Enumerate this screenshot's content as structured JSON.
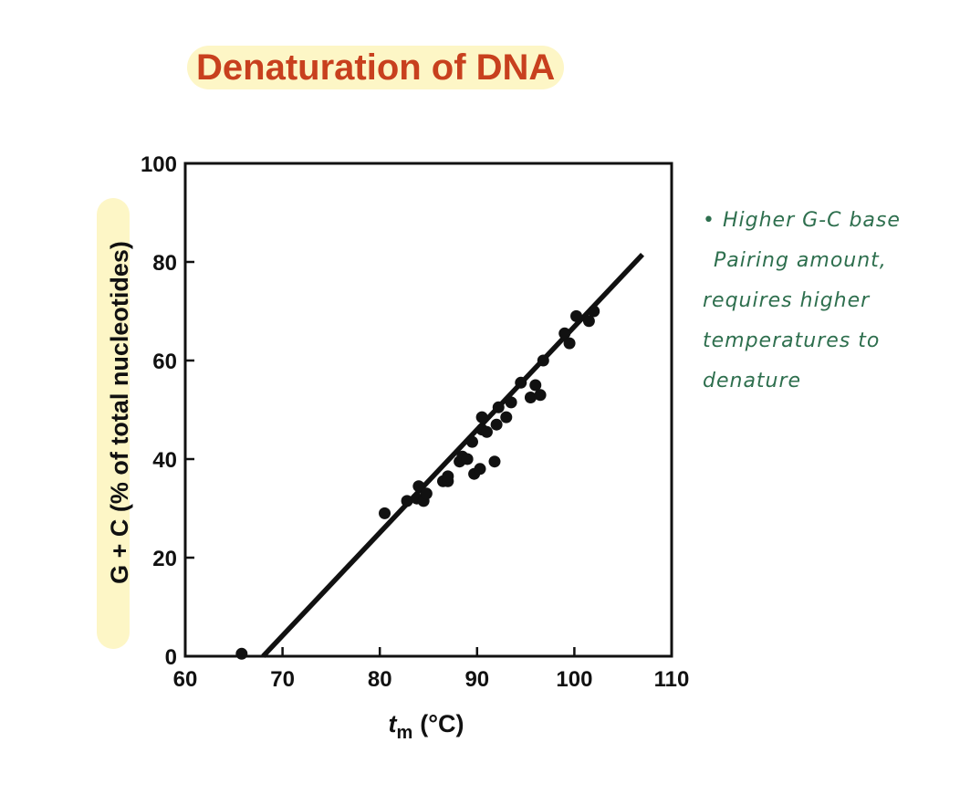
{
  "title": "Denaturation of DNA",
  "colors": {
    "title": "#c8401e",
    "highlight": "#fdf6c6",
    "ink": "#111111",
    "note": "#2e6f4e"
  },
  "notes": [
    "• Higher G-C base",
    "Pairing amount,",
    "requires higher",
    "temperatures to",
    "denature"
  ],
  "chart_data": {
    "type": "scatter",
    "xlabel_main": "t",
    "xlabel_sub": "m",
    "xlabel_unit": "(°C)",
    "ylabel": "G + C (% of total nucleotides)",
    "xlim": [
      60,
      110
    ],
    "ylim": [
      0,
      100
    ],
    "xticks": [
      60,
      70,
      80,
      90,
      100,
      110
    ],
    "yticks": [
      0,
      20,
      40,
      60,
      80,
      100
    ],
    "grid": false,
    "fit_line": {
      "x": [
        68,
        107
      ],
      "y": [
        0,
        81.5
      ]
    },
    "points": [
      [
        65.8,
        0.5
      ],
      [
        80.5,
        29
      ],
      [
        82.8,
        31.5
      ],
      [
        83.8,
        32
      ],
      [
        84,
        34.5
      ],
      [
        84.5,
        31.5
      ],
      [
        84.8,
        33
      ],
      [
        86.5,
        35.5
      ],
      [
        87,
        35.5
      ],
      [
        87,
        36.5
      ],
      [
        88.2,
        39.5
      ],
      [
        88.5,
        40.5
      ],
      [
        89,
        40
      ],
      [
        89.5,
        43.5
      ],
      [
        89.7,
        37
      ],
      [
        90.3,
        38
      ],
      [
        90.5,
        46
      ],
      [
        90.5,
        48.5
      ],
      [
        91,
        45.5
      ],
      [
        91.8,
        39.5
      ],
      [
        92,
        47
      ],
      [
        92.2,
        50.5
      ],
      [
        93,
        48.5
      ],
      [
        93.5,
        51.5
      ],
      [
        94.5,
        55.5
      ],
      [
        95.5,
        52.5
      ],
      [
        96,
        55
      ],
      [
        96.5,
        53
      ],
      [
        96.8,
        60
      ],
      [
        99,
        65.5
      ],
      [
        99.5,
        63.5
      ],
      [
        100.2,
        69
      ],
      [
        101.5,
        68
      ],
      [
        102,
        70
      ]
    ]
  }
}
